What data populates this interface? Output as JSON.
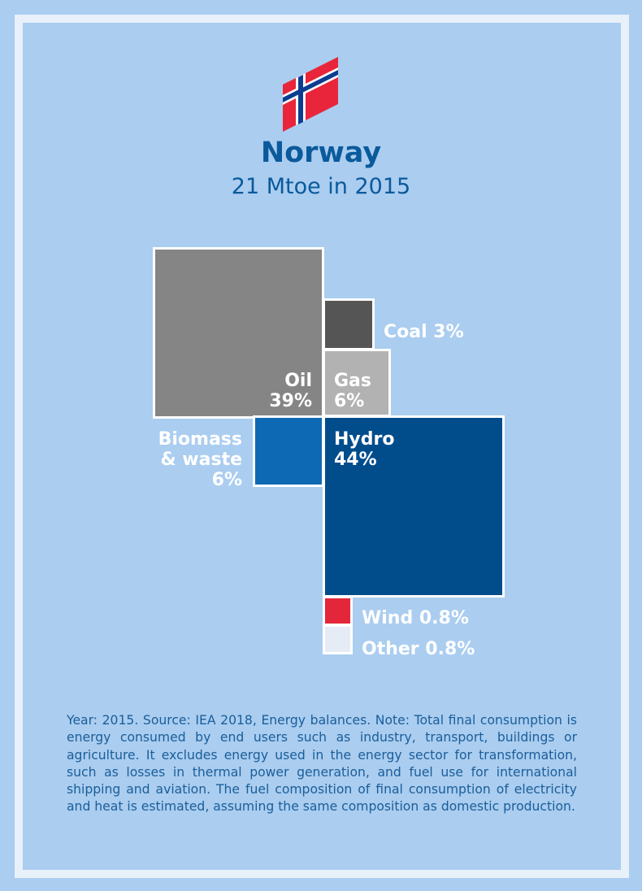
{
  "header": {
    "country": "Norway",
    "subtitle": "21 Mtoe in 2015"
  },
  "flag": {
    "icon": "norway-flag-icon",
    "colors": {
      "red": "#e8253a",
      "white": "#ffffff",
      "blue": "#0b3d91"
    }
  },
  "chart_data": {
    "type": "treemap",
    "title": "Norway",
    "subtitle": "21 Mtoe in 2015",
    "unit": "%",
    "segments": [
      {
        "name": "Oil",
        "value": 39,
        "label": "39%",
        "color": "#858585"
      },
      {
        "name": "Coal",
        "value": 3,
        "label": "3%",
        "color": "#555555"
      },
      {
        "name": "Gas",
        "value": 6,
        "label": "6%",
        "color": "#b2b2b2"
      },
      {
        "name": "Biomass & waste",
        "value": 6,
        "label": "6%",
        "color": "#0d69b4"
      },
      {
        "name": "Hydro",
        "value": 44,
        "label": "44%",
        "color": "#014d8c"
      },
      {
        "name": "Wind",
        "value": 0.8,
        "label": "0.8%",
        "color": "#e3263a"
      },
      {
        "name": "Other",
        "value": 0.8,
        "label": "0.8%",
        "color": "#e6ecf6"
      }
    ]
  },
  "labels": {
    "oil_name": "Oil",
    "oil_value": "39%",
    "coal": "Coal 3%",
    "gas_name": "Gas",
    "gas_value": "6%",
    "biomass_line1": "Biomass",
    "biomass_line2": "& waste",
    "biomass_value": "6%",
    "hydro_name": "Hydro",
    "hydro_value": "44%",
    "wind": "Wind 0.8%",
    "other": "Other 0.8%"
  },
  "footnote": "Year: 2015. Source: IEA 2018, Energy balances. Note: Total final consumption is energy consumed by end users such as industry, transport, buildings or agriculture. It excludes energy used in the energy sector for transformation, such as losses in thermal power generation, and fuel use for international shipping and aviation. The fuel composition of final consumption of electricity and heat is estimated, assuming the same composition as domestic production."
}
